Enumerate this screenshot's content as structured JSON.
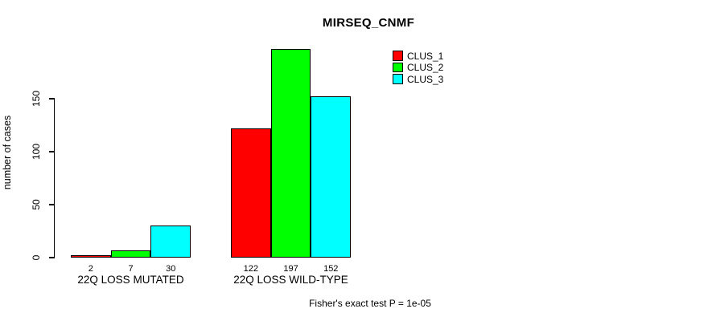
{
  "chart_data": {
    "type": "bar",
    "title": "MIRSEQ_CNMF",
    "ylabel": "number of cases",
    "xlabel": "",
    "categories": [
      "22Q LOSS MUTATED",
      "22Q LOSS WILD-TYPE"
    ],
    "series": [
      {
        "name": "CLUS_1",
        "color": "#ff0000",
        "values": [
          2,
          122
        ]
      },
      {
        "name": "CLUS_2",
        "color": "#00ff00",
        "values": [
          7,
          197
        ]
      },
      {
        "name": "CLUS_3",
        "color": "#00ffff",
        "values": [
          30,
          152
        ]
      }
    ],
    "bar_value_labels": [
      [
        2,
        7,
        30
      ],
      [
        122,
        197,
        152
      ]
    ],
    "y_ticks": [
      0,
      50,
      100,
      150
    ],
    "ylim": [
      0,
      150
    ],
    "grid": false,
    "legend": {
      "position": "top-right"
    },
    "annotation": "Fisher's exact test P = 1e-05"
  }
}
